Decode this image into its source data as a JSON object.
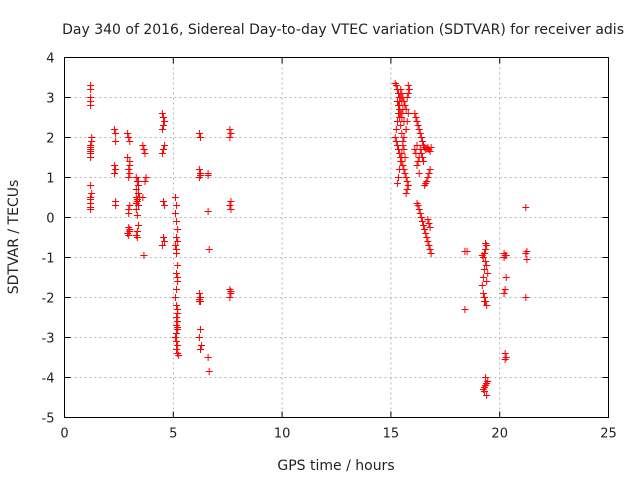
{
  "chart_data": {
    "type": "scatter",
    "title": "Day 340 of 2016, Sidereal Day-to-day VTEC variation (SDTVAR) for receiver adis",
    "xlabel": "GPS time / hours",
    "ylabel": "SDTVAR / TECUs",
    "xlim": [
      0,
      25
    ],
    "ylim": [
      -5,
      4
    ],
    "xticks": [
      0,
      5,
      10,
      15,
      20,
      25
    ],
    "yticks": [
      -5,
      -4,
      -3,
      -2,
      -1,
      0,
      1,
      2,
      3,
      4
    ],
    "grid": true,
    "marker": "+",
    "color": "#ff0000",
    "series": [
      {
        "name": "SDTVAR",
        "x": [
          1.2,
          1.2,
          1.2,
          1.2,
          1.2,
          1.25,
          1.25,
          1.2,
          1.2,
          1.2,
          1.2,
          1.2,
          1.2,
          1.2,
          1.25,
          1.2,
          1.2,
          1.2,
          1.2,
          1.2,
          2.3,
          2.35,
          2.35,
          2.3,
          2.35,
          2.3,
          2.35,
          2.35,
          2.9,
          2.95,
          3.0,
          2.9,
          3.0,
          3.0,
          2.95,
          3.0,
          2.95,
          3.0,
          2.95,
          2.95,
          3.0,
          2.9,
          2.95,
          3.0,
          2.95,
          3.3,
          3.35,
          3.4,
          3.3,
          3.4,
          3.3,
          3.35,
          3.35,
          3.3,
          3.4,
          3.3,
          3.35,
          3.4,
          3.35,
          3.3,
          3.35,
          3.4,
          3.4,
          3.45,
          3.6,
          3.65,
          3.7,
          3.75,
          3.7,
          3.6,
          3.65,
          4.5,
          4.55,
          4.6,
          4.55,
          4.5,
          4.6,
          4.55,
          4.5,
          4.55,
          4.6,
          4.55,
          4.6,
          4.5,
          5.1,
          5.15,
          5.1,
          5.15,
          5.2,
          5.15,
          5.1,
          5.15,
          5.2,
          5.15,
          5.2,
          5.15,
          5.1,
          5.15,
          5.2,
          5.15,
          5.2,
          5.15,
          5.2,
          5.15,
          5.1,
          5.15,
          5.2,
          5.15,
          5.2,
          5.2,
          5.2,
          5.15,
          5.2,
          5.25,
          5.2,
          6.2,
          6.25,
          6.2,
          6.25,
          6.2,
          6.25,
          6.2,
          6.25,
          6.2,
          6.25,
          6.2,
          6.3,
          6.25,
          6.2,
          6.25,
          6.6,
          6.6,
          6.65,
          6.6,
          6.65,
          6.6,
          7.6,
          7.65,
          7.6,
          7.65,
          7.6,
          7.65,
          7.6,
          7.65,
          7.6,
          7.65,
          15.2,
          15.25,
          15.3,
          15.35,
          15.4,
          15.3,
          15.35,
          15.4,
          15.45,
          15.5,
          15.55,
          15.5,
          15.45,
          15.4,
          15.35,
          15.3,
          15.25,
          15.2,
          15.25,
          15.3,
          15.35,
          15.4,
          15.45,
          15.5,
          15.55,
          15.6,
          15.65,
          15.7,
          15.75,
          15.8,
          15.75,
          15.7,
          15.65,
          15.6,
          15.55,
          15.5,
          15.45,
          15.4,
          15.45,
          15.5,
          15.55,
          15.6,
          15.65,
          15.7,
          15.75,
          15.8,
          15.85,
          15.8,
          15.75,
          15.7,
          15.6,
          15.55,
          15.5,
          15.45,
          15.4,
          15.35,
          15.3,
          15.4,
          15.5,
          15.6,
          15.7,
          15.8,
          16.1,
          16.15,
          16.2,
          16.25,
          16.3,
          16.35,
          16.4,
          16.45,
          16.5,
          16.55,
          16.6,
          16.65,
          16.7,
          16.75,
          16.8,
          16.85,
          16.8,
          16.75,
          16.7,
          16.65,
          16.6,
          16.55,
          16.5,
          16.45,
          16.4,
          16.35,
          16.3,
          16.25,
          16.2,
          16.15,
          16.1,
          16.2,
          16.3,
          16.2,
          16.25,
          16.3,
          16.35,
          16.4,
          16.45,
          16.5,
          16.55,
          16.6,
          16.65,
          16.7,
          16.75,
          16.8,
          16.85,
          16.7,
          16.75,
          16.8,
          18.4,
          18.5,
          18.4,
          19.2,
          19.25,
          19.3,
          19.35,
          19.4,
          19.35,
          19.3,
          19.25,
          19.2,
          19.25,
          19.3,
          19.35,
          19.4,
          19.45,
          19.4,
          19.35,
          19.3,
          19.25,
          19.3,
          19.35,
          19.4,
          19.45,
          19.4,
          19.35,
          19.3,
          19.4,
          20.2,
          20.25,
          20.3,
          20.25,
          20.2,
          20.25,
          20.3,
          20.25,
          20.2,
          20.3,
          21.2,
          21.25,
          21.2,
          21.25,
          21.2
        ],
        "y": [
          3.3,
          3.2,
          3.0,
          2.9,
          2.8,
          2.0,
          1.9,
          1.8,
          1.7,
          1.6,
          1.5,
          1.65,
          1.75,
          0.8,
          0.6,
          0.5,
          0.45,
          0.35,
          0.25,
          0.2,
          2.2,
          2.1,
          1.9,
          1.3,
          1.2,
          1.1,
          0.4,
          0.3,
          2.1,
          2.0,
          1.9,
          1.5,
          1.4,
          1.3,
          1.2,
          1.1,
          1.0,
          0.3,
          0.2,
          0.1,
          -0.3,
          -0.4,
          -0.45,
          -0.35,
          -0.25,
          1.0,
          0.9,
          0.8,
          0.7,
          0.6,
          0.5,
          0.45,
          0.4,
          0.35,
          0.3,
          0.2,
          0.05,
          -0.2,
          -0.35,
          -0.45,
          -0.5,
          0.9,
          0.6,
          0.5,
          1.8,
          1.7,
          1.6,
          1.0,
          0.9,
          0.5,
          -0.95,
          2.6,
          2.5,
          2.4,
          2.3,
          2.2,
          1.8,
          1.7,
          1.6,
          0.4,
          0.3,
          -0.5,
          -0.6,
          -0.7,
          0.5,
          0.3,
          0.1,
          -0.1,
          -0.3,
          -0.5,
          -0.7,
          -0.9,
          -1.2,
          -1.4,
          -1.6,
          -1.8,
          -2.0,
          -2.2,
          -2.4,
          -2.5,
          -2.6,
          -2.7,
          -2.8,
          -2.9,
          -3.0,
          -3.1,
          -3.2,
          -3.3,
          -3.4,
          -2.3,
          -1.5,
          -0.8,
          -0.6,
          -3.45,
          -2.75,
          2.1,
          2.0,
          1.2,
          1.1,
          1.0,
          1.05,
          -1.9,
          -2.0,
          -2.1,
          -2.8,
          -3.0,
          -3.2,
          -3.3,
          -2.05,
          -2.1,
          1.1,
          0.15,
          -0.8,
          -3.5,
          -3.85,
          1.05,
          2.2,
          2.1,
          2.0,
          0.4,
          0.3,
          0.2,
          -1.8,
          -1.9,
          -2.0,
          -1.85,
          3.35,
          3.3,
          3.2,
          3.1,
          3.0,
          2.9,
          2.8,
          2.7,
          2.6,
          2.5,
          2.7,
          2.9,
          3.0,
          2.8,
          2.6,
          2.4,
          2.2,
          2.0,
          1.9,
          1.8,
          1.7,
          1.6,
          1.5,
          1.4,
          1.3,
          1.2,
          1.1,
          1.0,
          0.9,
          0.8,
          0.7,
          0.6,
          1.5,
          1.7,
          1.9,
          2.1,
          2.3,
          2.5,
          3.2,
          3.1,
          3.0,
          2.9,
          2.8,
          2.7,
          3.0,
          3.1,
          3.2,
          2.6,
          2.4,
          2.2,
          2.0,
          1.8,
          1.6,
          1.4,
          1.2,
          1.0,
          0.85,
          2.8,
          2.6,
          2.4,
          2.2,
          3.3,
          2.6,
          2.5,
          2.4,
          2.3,
          2.2,
          2.1,
          2.0,
          1.9,
          1.8,
          1.75,
          1.7,
          1.72,
          1.75,
          1.7,
          1.65,
          1.75,
          1.2,
          1.1,
          1.0,
          0.9,
          0.85,
          0.8,
          1.4,
          1.5,
          1.6,
          1.7,
          1.5,
          1.4,
          1.3,
          1.6,
          1.7,
          1.8,
          1.1,
          0.35,
          0.3,
          0.2,
          0.1,
          0.0,
          -0.1,
          -0.2,
          -0.3,
          -0.4,
          -0.5,
          -0.6,
          -0.7,
          -0.8,
          -0.9,
          -0.05,
          -0.15,
          -0.25,
          -0.85,
          -0.85,
          -2.3,
          -0.95,
          -1.0,
          -0.9,
          -0.8,
          -0.7,
          -1.1,
          -1.3,
          -1.5,
          -1.7,
          -1.9,
          -2.0,
          -2.1,
          -2.2,
          -4.1,
          -4.15,
          -4.2,
          -4.25,
          -4.3,
          -4.35,
          -4.0,
          -1.6,
          -1.4,
          -1.2,
          -0.65,
          -2.1,
          -4.45,
          -0.9,
          -0.95,
          -1.5,
          -1.8,
          -1.9,
          -3.4,
          -3.5,
          -3.55,
          -1.0,
          -0.95,
          0.25,
          -0.85,
          -0.9,
          -1.05,
          -2.0
        ]
      }
    ]
  }
}
